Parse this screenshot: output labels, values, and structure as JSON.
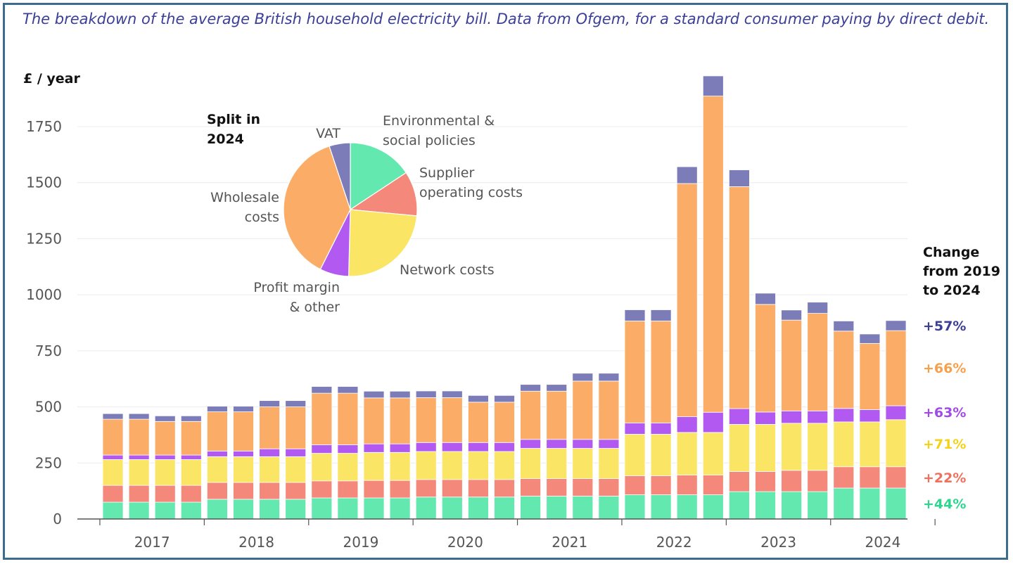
{
  "subtitle": "The breakdown of the average British household electricity bill. Data from Ofgem, for a standard consumer paying by direct debit.",
  "chart_data": {
    "type": "bar",
    "stacked": true,
    "ylabel": "£ / year",
    "ylim": [
      0,
      2000
    ],
    "yticks": [
      0,
      250,
      500,
      750,
      1000,
      1250,
      1500,
      1750
    ],
    "grid": "horizontal",
    "year_labels": [
      "2017",
      "2018",
      "2019",
      "2020",
      "2021",
      "2022",
      "2023",
      "2024"
    ],
    "bars_per_year": 4,
    "colors": {
      "Environmental & social policies": "#63e8b0",
      "Supplier operating costs": "#f4887a",
      "Network costs": "#fbe565",
      "Profit margin & other": "#b159f0",
      "Wholesale costs": "#fbad68",
      "VAT": "#7b7cb8"
    },
    "series": [
      {
        "name": "Environmental & social policies",
        "values": [
          75,
          75,
          75,
          75,
          88,
          88,
          88,
          88,
          94,
          94,
          94,
          94,
          98,
          98,
          98,
          98,
          102,
          102,
          102,
          102,
          108,
          108,
          108,
          108,
          122,
          122,
          122,
          122,
          138,
          138,
          138
        ]
      },
      {
        "name": "Supplier operating costs",
        "values": [
          75,
          75,
          75,
          75,
          75,
          75,
          75,
          75,
          76,
          76,
          78,
          78,
          78,
          78,
          78,
          78,
          78,
          78,
          78,
          78,
          85,
          85,
          88,
          88,
          90,
          90,
          95,
          95,
          95,
          95,
          95
        ]
      },
      {
        "name": "Network costs",
        "values": [
          115,
          115,
          115,
          115,
          115,
          115,
          115,
          115,
          123,
          123,
          125,
          125,
          125,
          125,
          125,
          125,
          135,
          135,
          135,
          135,
          185,
          185,
          190,
          190,
          210,
          210,
          210,
          210,
          200,
          200,
          210
        ]
      },
      {
        "name": "Profit margin & other",
        "values": [
          20,
          20,
          20,
          20,
          25,
          25,
          35,
          35,
          38,
          38,
          38,
          38,
          40,
          40,
          40,
          40,
          40,
          40,
          40,
          40,
          50,
          50,
          70,
          90,
          70,
          55,
          55,
          55,
          60,
          55,
          62
        ]
      },
      {
        "name": "Wholesale costs",
        "values": [
          160,
          160,
          150,
          150,
          175,
          175,
          187,
          187,
          230,
          230,
          205,
          205,
          200,
          200,
          180,
          180,
          215,
          215,
          260,
          260,
          455,
          455,
          1040,
          1410,
          990,
          480,
          405,
          435,
          345,
          295,
          335
        ]
      },
      {
        "name": "VAT",
        "values": [
          25,
          25,
          25,
          25,
          25,
          25,
          28,
          28,
          30,
          30,
          30,
          30,
          30,
          30,
          30,
          30,
          30,
          30,
          35,
          35,
          50,
          50,
          75,
          90,
          75,
          50,
          45,
          50,
          45,
          42,
          45
        ]
      }
    ],
    "pie": {
      "title": "Split in 2024",
      "slices": [
        {
          "label": "Environmental & social policies",
          "display": [
            "Environmental &",
            "social policies"
          ],
          "value": 15.7
        },
        {
          "label": "Supplier operating costs",
          "display": [
            "Supplier",
            "operating costs"
          ],
          "value": 10.8
        },
        {
          "label": "Network costs",
          "display": [
            "Network costs"
          ],
          "value": 23.9
        },
        {
          "label": "Profit margin & other",
          "display": [
            "Profit margin",
            "& other"
          ],
          "value": 7.0
        },
        {
          "label": "Wholesale costs",
          "display": [
            "Wholesale",
            "costs"
          ],
          "value": 37.5
        },
        {
          "label": "VAT",
          "display": [
            "VAT"
          ],
          "value": 5.1
        }
      ]
    },
    "change_title": [
      "Change",
      "from 2019",
      "to 2024"
    ],
    "changes": [
      {
        "label": "+57%",
        "series": "VAT",
        "color": "#3b3f96"
      },
      {
        "label": "+66%",
        "series": "Wholesale costs",
        "color": "#f7a04c"
      },
      {
        "label": "+63%",
        "series": "Profit margin & other",
        "color": "#a14ae8"
      },
      {
        "label": "+71%",
        "series": "Network costs",
        "color": "#f5d21a"
      },
      {
        "label": "+22%",
        "series": "Supplier operating costs",
        "color": "#f0705e"
      },
      {
        "label": "+44%",
        "series": "Environmental & social policies",
        "color": "#2fd58f"
      }
    ]
  }
}
